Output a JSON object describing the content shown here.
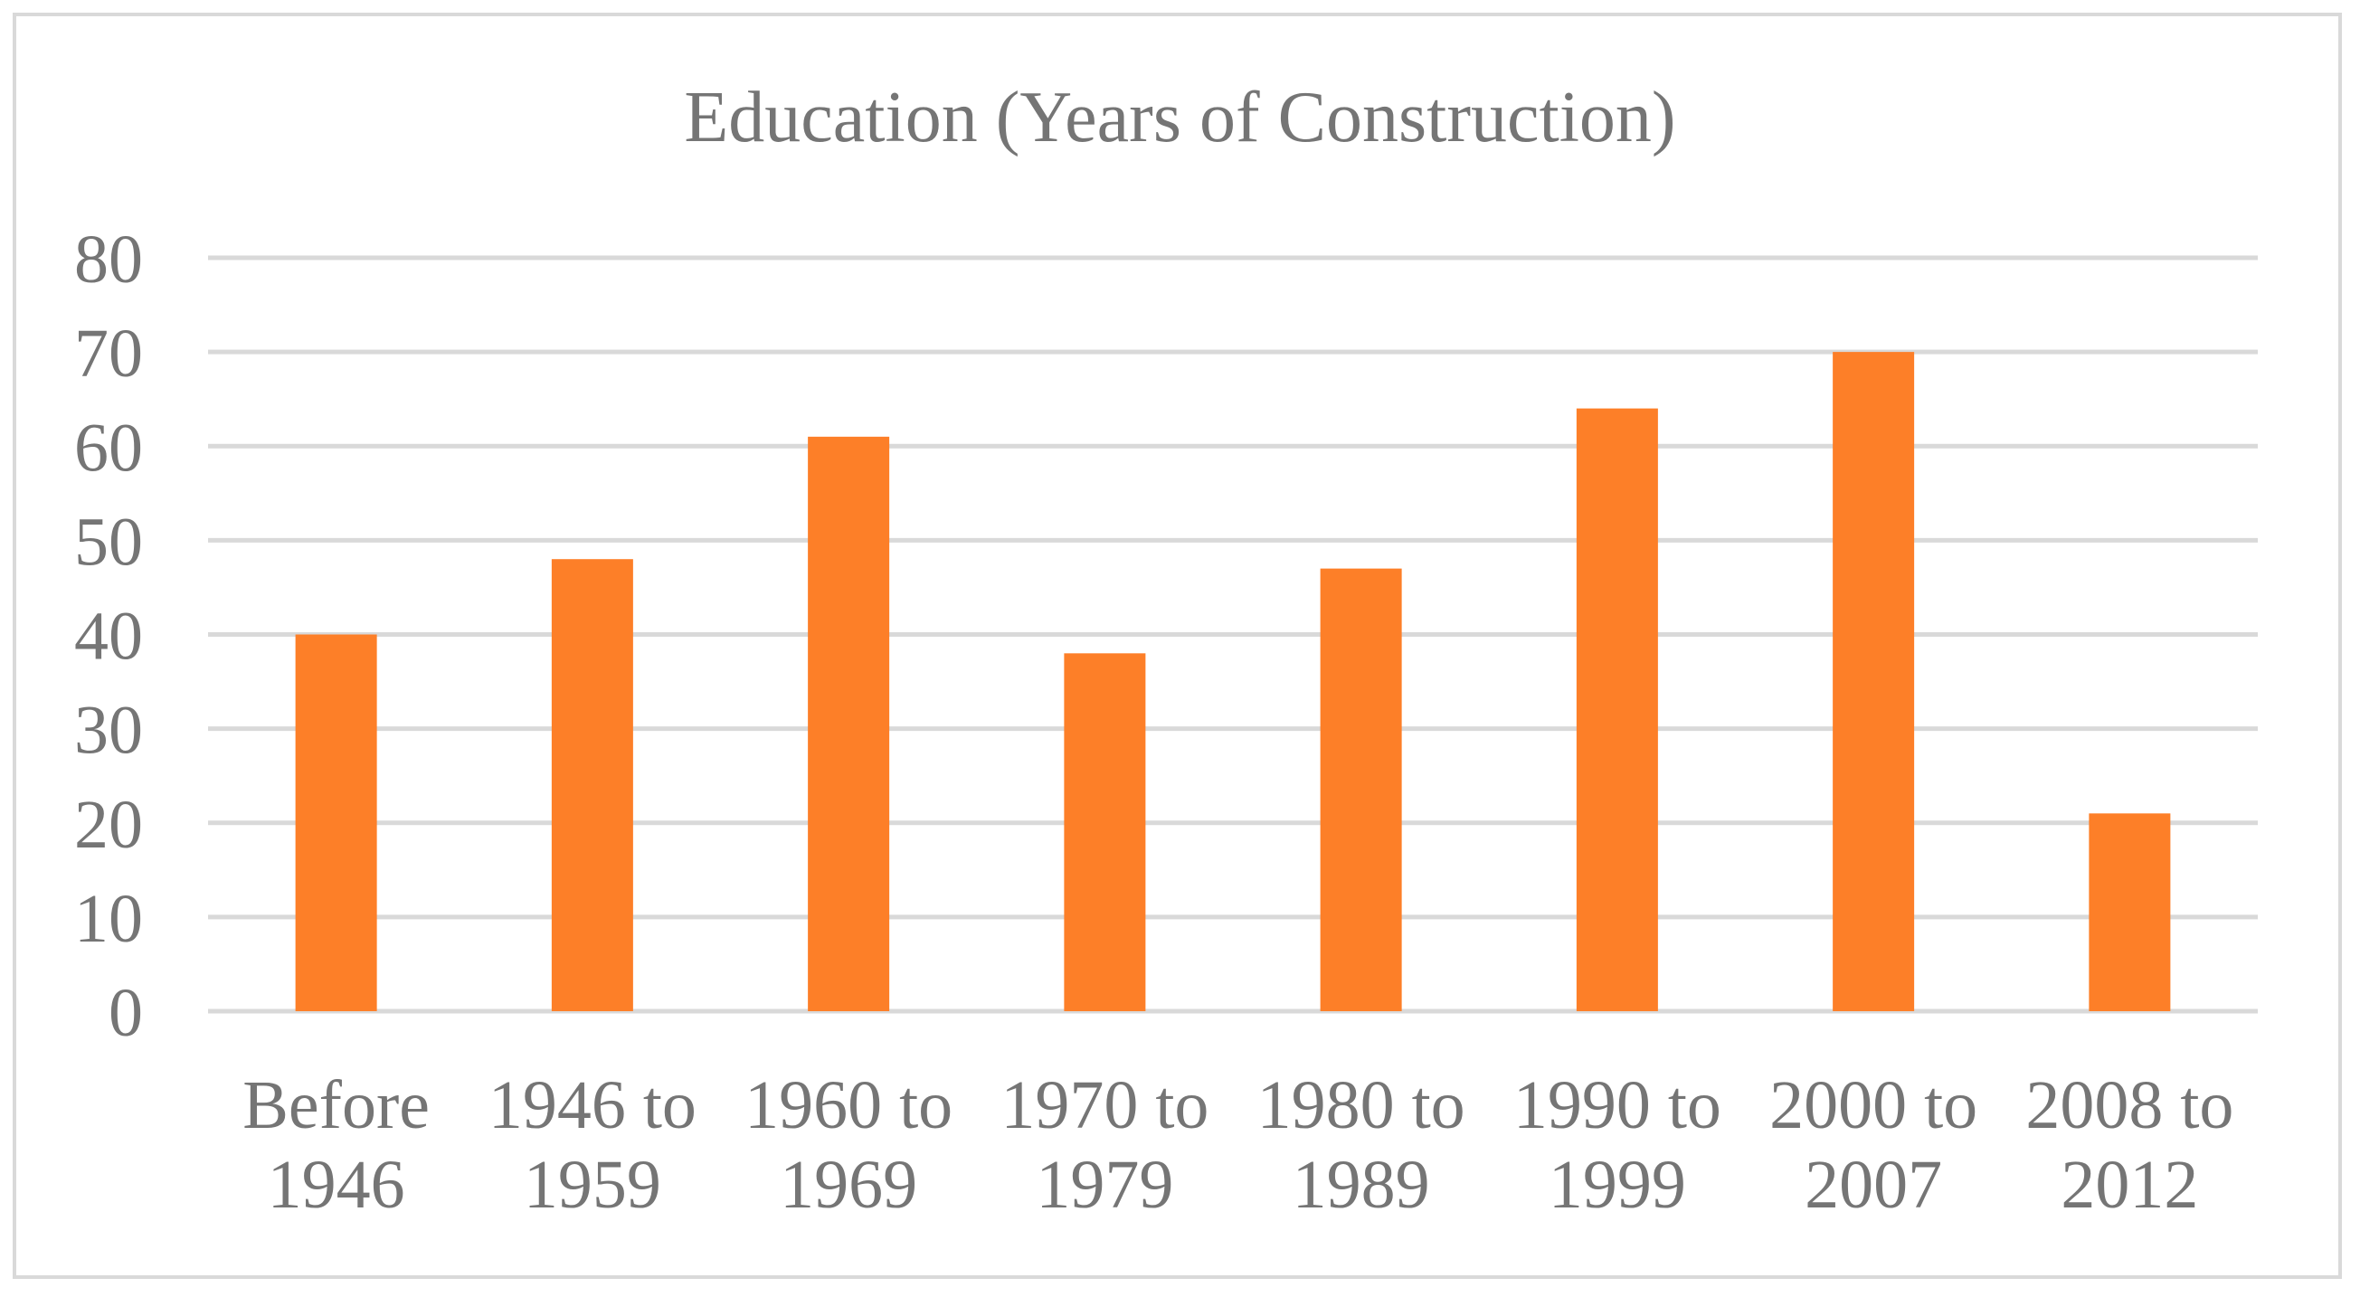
{
  "chart_data": {
    "type": "bar",
    "title": "Education (Years of Construction)",
    "xlabel": "",
    "ylabel": "",
    "categories": [
      [
        "Before",
        "1946"
      ],
      [
        "1946 to",
        "1959"
      ],
      [
        "1960 to",
        "1969"
      ],
      [
        "1970 to",
        "1979"
      ],
      [
        "1980 to",
        "1989"
      ],
      [
        "1990 to",
        "1999"
      ],
      [
        "2000 to",
        "2007"
      ],
      [
        "2008 to",
        "2012"
      ]
    ],
    "values": [
      40,
      48,
      61,
      38,
      47,
      64,
      70,
      21
    ],
    "ylim": [
      0,
      80
    ],
    "yticks": [
      "0",
      "10",
      "20",
      "30",
      "40",
      "50",
      "60",
      "70",
      "80"
    ],
    "grid": true,
    "legend": "none",
    "colors": {
      "bar": "#fd7f28",
      "grid": "#d9d9d9",
      "text": "#757575",
      "border": "#d9d9d9"
    }
  }
}
